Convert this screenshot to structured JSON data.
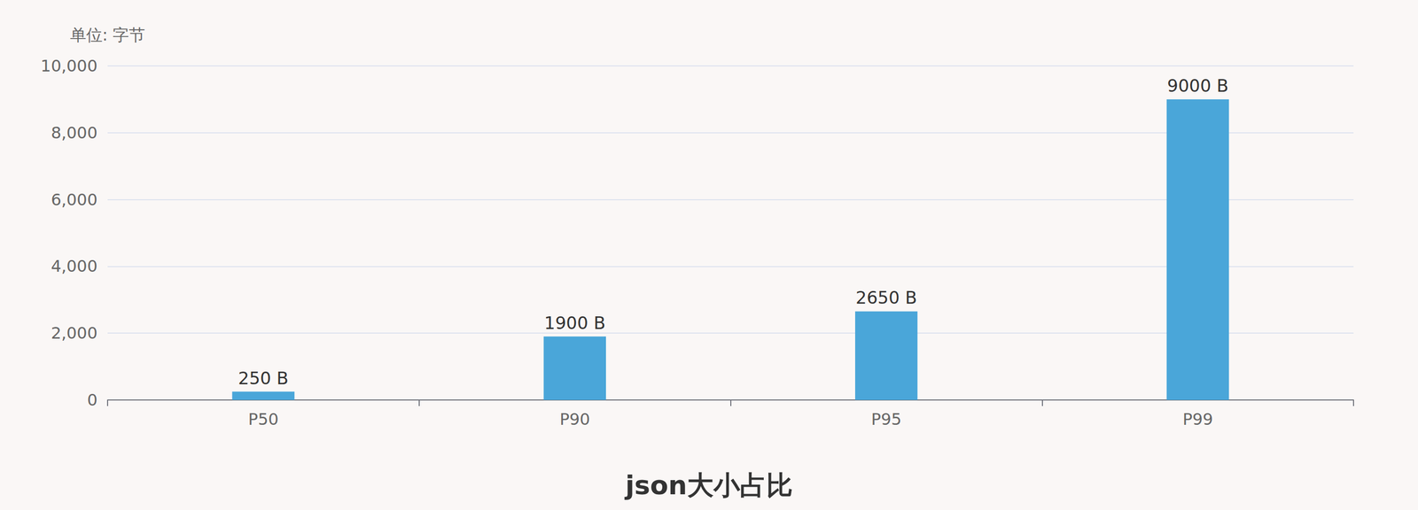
{
  "chart_data": {
    "type": "bar",
    "title": "json大小占比",
    "ylabel": "单位: 字节",
    "categories": [
      "P50",
      "P90",
      "P95",
      "P99"
    ],
    "values": [
      250,
      1900,
      2650,
      9000
    ],
    "value_labels": [
      "250 B",
      "1900 B",
      "2650 B",
      "9000 B"
    ],
    "data_labels": true,
    "color": "#4aa6d9",
    "ylim": [
      0,
      10000
    ],
    "yticks": [
      0,
      {
        "value": 2000,
        "label": "2,000"
      },
      {
        "value": 4000,
        "label": "4,000"
      },
      {
        "value": 6000,
        "label": "6,000"
      },
      {
        "value": 8000,
        "label": "8,000"
      },
      {
        "value": 10000,
        "label": "10,000"
      }
    ],
    "grid": true
  }
}
